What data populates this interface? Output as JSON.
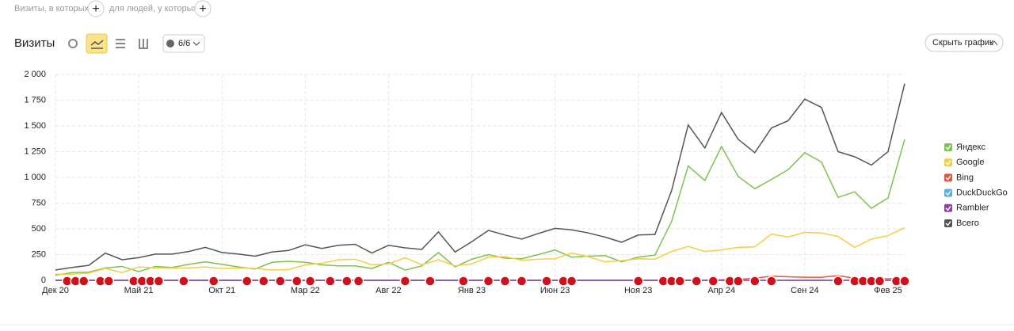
{
  "filter_bar": {
    "label_1": "Визиты, в которых",
    "add_1": "+",
    "label_2": "для людей, у которых",
    "add_2": "+"
  },
  "header": {
    "title": "Визиты",
    "segments": "6/6",
    "hide_button": "Скрыть график"
  },
  "chart_data": {
    "type": "line",
    "categories": [
      "Дек 20",
      null,
      null,
      null,
      null,
      "Май 21",
      null,
      null,
      null,
      null,
      "Окт 21",
      null,
      null,
      null,
      null,
      "Мар 22",
      null,
      null,
      null,
      null,
      "Авг 22",
      null,
      null,
      null,
      null,
      "Янв 23",
      null,
      null,
      null,
      null,
      "Июн 23",
      null,
      null,
      null,
      null,
      "Ноя 23",
      null,
      null,
      null,
      null,
      "Апр 24",
      null,
      null,
      null,
      null,
      "Сен 24",
      null,
      null,
      null,
      null,
      "Фев 25",
      null
    ],
    "series": [
      {
        "name": "Яндекс",
        "color": "#7ec351",
        "values": [
          50,
          75,
          80,
          120,
          135,
          85,
          135,
          125,
          155,
          180,
          155,
          130,
          110,
          175,
          185,
          175,
          150,
          140,
          140,
          115,
          175,
          100,
          140,
          270,
          130,
          205,
          250,
          215,
          210,
          250,
          295,
          225,
          235,
          240,
          180,
          225,
          245,
          570,
          1110,
          970,
          1300,
          1010,
          890,
          980,
          1075,
          1240,
          1150,
          805,
          860,
          700,
          800,
          1370
        ]
      },
      {
        "name": "Google",
        "color": "#f7cd45",
        "values": [
          60,
          60,
          70,
          115,
          75,
          130,
          120,
          120,
          120,
          130,
          115,
          120,
          115,
          100,
          105,
          150,
          165,
          200,
          205,
          150,
          160,
          220,
          150,
          200,
          140,
          160,
          225,
          230,
          195,
          205,
          210,
          265,
          230,
          180,
          190,
          210,
          205,
          280,
          330,
          280,
          295,
          320,
          325,
          450,
          420,
          465,
          460,
          425,
          320,
          400,
          435,
          510
        ]
      },
      {
        "name": "Bing",
        "color": "#e8553a",
        "values": [
          0,
          0,
          0,
          0,
          0,
          0,
          0,
          0,
          0,
          0,
          0,
          0,
          0,
          0,
          0,
          0,
          0,
          0,
          0,
          0,
          0,
          0,
          0,
          0,
          0,
          0,
          0,
          0,
          0,
          0,
          0,
          0,
          0,
          0,
          0,
          0,
          0,
          0,
          0,
          0,
          5,
          10,
          20,
          40,
          35,
          30,
          30,
          45,
          20,
          15,
          15,
          20
        ]
      },
      {
        "name": "DuckDuckGo",
        "color": "#5aaee0",
        "values": [
          0,
          0,
          0,
          0,
          0,
          0,
          0,
          0,
          0,
          0,
          0,
          0,
          0,
          0,
          0,
          0,
          0,
          0,
          0,
          0,
          0,
          0,
          0,
          0,
          0,
          0,
          0,
          0,
          0,
          0,
          0,
          0,
          0,
          0,
          0,
          0,
          0,
          0,
          0,
          0,
          0,
          0,
          0,
          0,
          0,
          0,
          0,
          0,
          0,
          0,
          0,
          0
        ]
      },
      {
        "name": "Rambler",
        "color": "#8e3fa6",
        "values": [
          0,
          0,
          0,
          0,
          0,
          0,
          0,
          0,
          0,
          0,
          0,
          0,
          0,
          0,
          0,
          0,
          0,
          0,
          0,
          0,
          0,
          0,
          0,
          0,
          0,
          0,
          0,
          0,
          0,
          0,
          0,
          0,
          0,
          0,
          0,
          0,
          0,
          0,
          0,
          0,
          0,
          0,
          0,
          0,
          0,
          0,
          0,
          0,
          0,
          0,
          0,
          0
        ]
      },
      {
        "name": "Всего",
        "color": "#555555",
        "values": [
          100,
          125,
          145,
          265,
          200,
          220,
          255,
          255,
          280,
          320,
          270,
          255,
          235,
          275,
          290,
          345,
          310,
          340,
          350,
          265,
          340,
          315,
          300,
          470,
          275,
          375,
          485,
          440,
          400,
          455,
          505,
          490,
          460,
          420,
          370,
          440,
          445,
          870,
          1510,
          1285,
          1630,
          1370,
          1240,
          1480,
          1550,
          1760,
          1680,
          1250,
          1200,
          1120,
          1250,
          1910
        ]
      }
    ],
    "ylim": [
      0,
      2000
    ],
    "yticks": [
      0,
      250,
      500,
      750,
      {
        "value": 1000,
        "label": "1 000"
      },
      {
        "value": 1250,
        "label": "1 250"
      },
      {
        "value": 1500,
        "label": "1 500"
      },
      {
        "value": 1750,
        "label": "1 750"
      },
      {
        "value": 2000,
        "label": "2 000"
      }
    ],
    "grid": true
  }
}
